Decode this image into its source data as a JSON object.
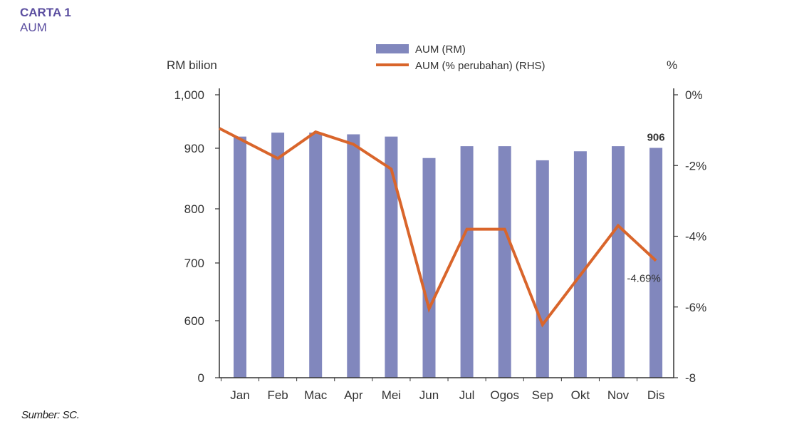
{
  "header": {
    "title": "CARTA 1",
    "subtitle": "AUM"
  },
  "source": "Sumber: SC.",
  "colors": {
    "bar": "#8187bd",
    "line": "#d9652b",
    "axis": "#333333",
    "title": "#5b4ea0"
  },
  "chart_data": {
    "type": "bar+line",
    "categories": [
      "Jan",
      "Feb",
      "Mac",
      "Apr",
      "Mei",
      "Jun",
      "Jul",
      "Ogos",
      "Sep",
      "Okt",
      "Nov",
      "Dis"
    ],
    "left_axis": {
      "label": "RM bilion",
      "ticks": [
        "1,000",
        "900",
        "800",
        "700",
        "600",
        "0"
      ]
    },
    "right_axis": {
      "label": "%",
      "ticks": [
        "0%",
        "-2%",
        "-4%",
        "-6%",
        "-8"
      ],
      "range": [
        -8,
        0
      ]
    },
    "series": [
      {
        "name": "AUM (RM)",
        "type": "bar",
        "axis": "left",
        "values": [
          926,
          933,
          933,
          930,
          926,
          888,
          909,
          909,
          884,
          900,
          909,
          906
        ]
      },
      {
        "name": "AUM (% perubahan) (RHS)",
        "type": "line",
        "axis": "right",
        "values": [
          -0.95,
          -1.8,
          -1.05,
          -1.4,
          -2.1,
          -6.05,
          -3.8,
          -3.8,
          -6.5,
          -5.1,
          -3.7,
          -4.69
        ]
      }
    ],
    "annotations": [
      {
        "text": "906",
        "series": "AUM (RM)",
        "category": "Dis"
      },
      {
        "text": "-4.69%",
        "series": "AUM (% perubahan) (RHS)",
        "category": "Dis"
      }
    ]
  }
}
